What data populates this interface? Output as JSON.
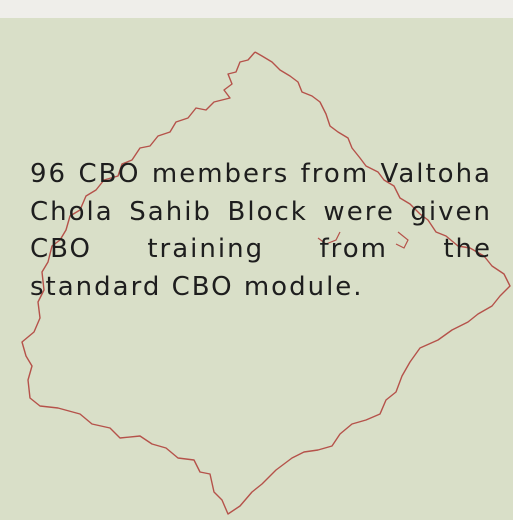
{
  "text": "96 CBO members from Valtoha Chola Sahib Block were given CBO training from the standard CBO module."
}
